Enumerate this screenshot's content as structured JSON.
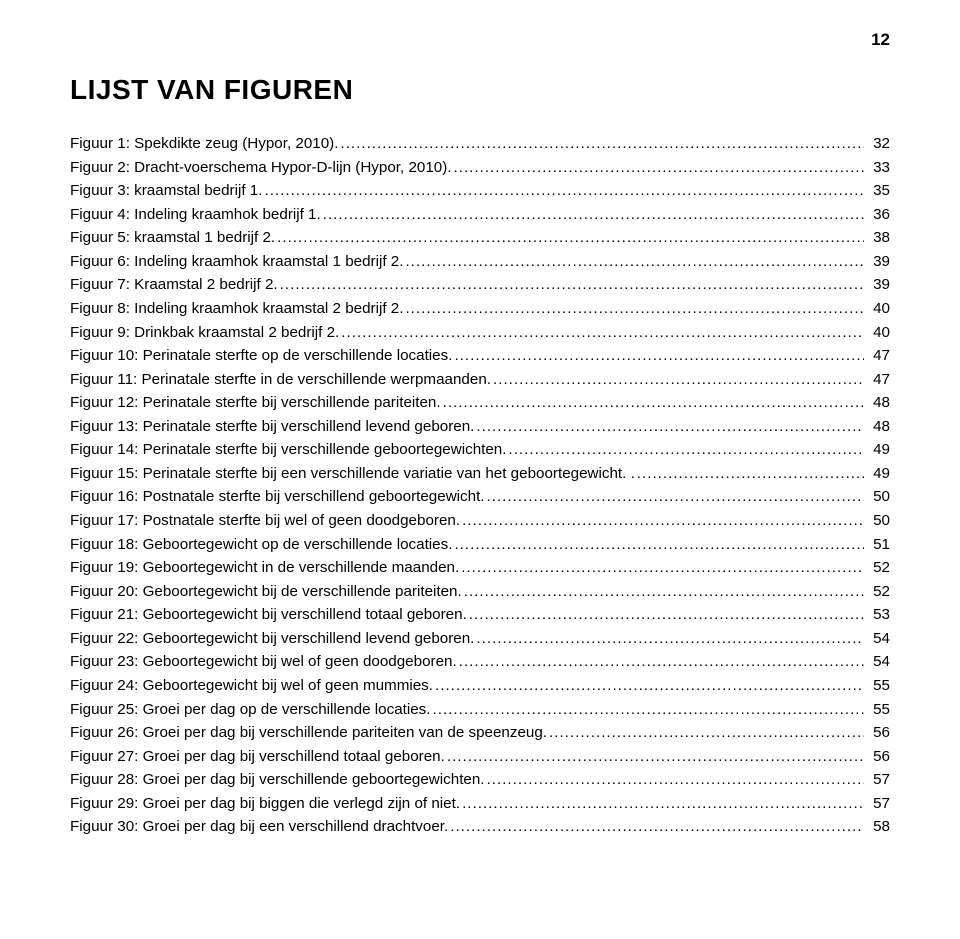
{
  "page_number": "12",
  "heading": "LIJST VAN FIGUREN",
  "entries": [
    {
      "label": "Figuur 1: Spekdikte zeug (Hypor, 2010).",
      "page": "32"
    },
    {
      "label": "Figuur 2: Dracht-voerschema Hypor-D-lijn (Hypor, 2010).",
      "page": "33"
    },
    {
      "label": "Figuur 3: kraamstal bedrijf 1.",
      "page": "35"
    },
    {
      "label": "Figuur 4: Indeling kraamhok bedrijf 1.",
      "page": "36"
    },
    {
      "label": "Figuur 5: kraamstal 1 bedrijf 2.",
      "page": "38"
    },
    {
      "label": "Figuur 6: Indeling kraamhok kraamstal 1 bedrijf 2.",
      "page": "39"
    },
    {
      "label": "Figuur 7: Kraamstal 2 bedrijf 2.",
      "page": "39"
    },
    {
      "label": "Figuur 8: Indeling kraamhok kraamstal 2 bedrijf 2.",
      "page": "40"
    },
    {
      "label": "Figuur 9: Drinkbak kraamstal 2 bedrijf 2.",
      "page": "40"
    },
    {
      "label": "Figuur 10: Perinatale sterfte op de verschillende locaties.",
      "page": "47"
    },
    {
      "label": "Figuur 11: Perinatale sterfte in de verschillende werpmaanden.",
      "page": "47"
    },
    {
      "label": "Figuur 12: Perinatale sterfte bij verschillende pariteiten.",
      "page": "48"
    },
    {
      "label": "Figuur 13: Perinatale sterfte bij verschillend levend geboren.",
      "page": "48"
    },
    {
      "label": "Figuur 14: Perinatale sterfte bij verschillende geboortegewichten.",
      "page": "49"
    },
    {
      "label": "Figuur 15: Perinatale sterfte bij een verschillende variatie van het geboortegewicht. .",
      "page": "49"
    },
    {
      "label": "Figuur 16: Postnatale sterfte bij verschillend geboortegewicht.",
      "page": "50"
    },
    {
      "label": "Figuur 17: Postnatale sterfte bij wel of geen doodgeboren.",
      "page": "50"
    },
    {
      "label": "Figuur 18: Geboortegewicht op de verschillende locaties.",
      "page": "51"
    },
    {
      "label": "Figuur 19: Geboortegewicht in de verschillende maanden.",
      "page": "52"
    },
    {
      "label": "Figuur 20: Geboortegewicht bij de verschillende pariteiten.",
      "page": "52"
    },
    {
      "label": "Figuur 21: Geboortegewicht bij verschillend totaal geboren.",
      "page": "53"
    },
    {
      "label": "Figuur 22: Geboortegewicht bij verschillend levend geboren.",
      "page": "54"
    },
    {
      "label": "Figuur 23: Geboortegewicht bij wel of geen doodgeboren.",
      "page": "54"
    },
    {
      "label": "Figuur 24: Geboortegewicht bij wel of geen mummies.",
      "page": "55"
    },
    {
      "label": "Figuur 25: Groei per dag op de verschillende locaties.",
      "page": "55"
    },
    {
      "label": "Figuur 26: Groei per dag bij verschillende pariteiten van de speenzeug.",
      "page": "56"
    },
    {
      "label": "Figuur 27: Groei per dag bij verschillend totaal geboren.",
      "page": "56"
    },
    {
      "label": "Figuur 28: Groei per dag bij verschillende geboortegewichten.",
      "page": "57"
    },
    {
      "label": "Figuur 29: Groei per dag bij biggen die verlegd zijn of niet.",
      "page": "57"
    },
    {
      "label": "Figuur 30: Groei per dag bij een verschillend drachtvoer.",
      "page": "58"
    }
  ]
}
